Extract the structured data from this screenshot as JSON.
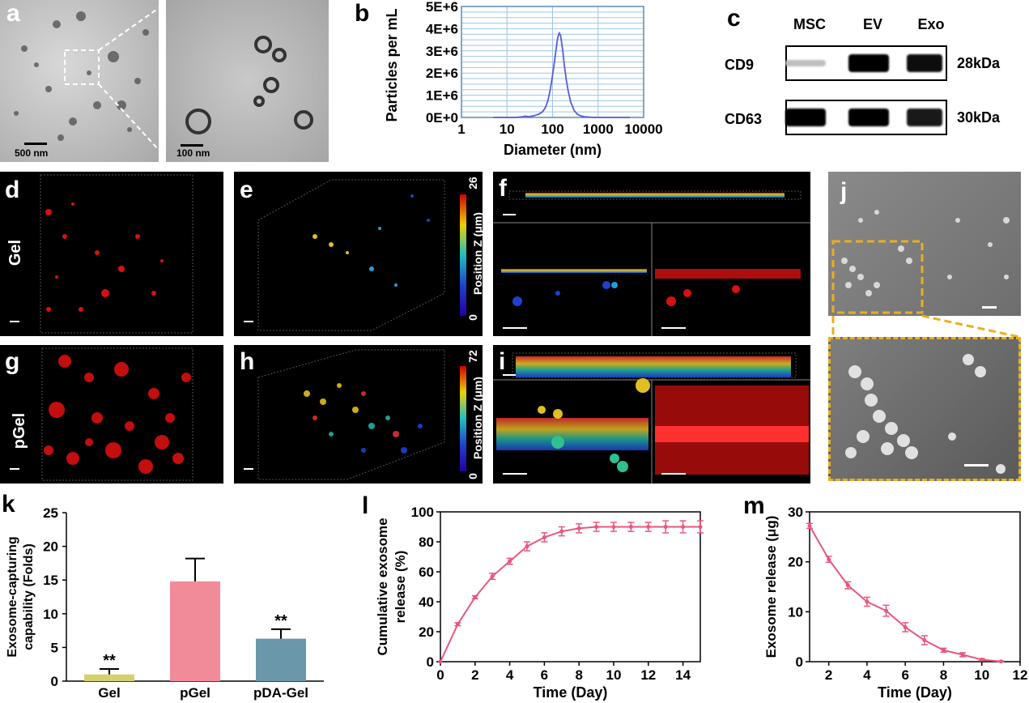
{
  "figure": {
    "panel_labels": {
      "a": "a",
      "b": "b",
      "c": "c",
      "d": "d",
      "e": "e",
      "f": "f",
      "g": "g",
      "h": "h",
      "i": "i",
      "j": "j",
      "k": "k",
      "l": "l",
      "m": "m"
    },
    "panel_a": {
      "scale_left": "500 nm",
      "scale_right": "100 nm"
    },
    "panel_c": {
      "columns": [
        "MSC",
        "EV",
        "Exo"
      ],
      "rows": [
        {
          "name": "CD9",
          "size": "28kDa",
          "intensity": [
            0.25,
            1.0,
            0.95
          ]
        },
        {
          "name": "CD63",
          "size": "30kDa",
          "intensity": [
            1.0,
            1.0,
            0.9
          ]
        }
      ]
    },
    "row_labels": {
      "gel": "Gel",
      "pgel": "pGel"
    },
    "colorbar": {
      "axis_label": "Position Z (μm)",
      "top_e": "26",
      "bottom_e": "0",
      "top_h": "72",
      "bottom_h": "0"
    }
  },
  "chart_data": [
    {
      "id": "b",
      "type": "line",
      "title": "",
      "xlabel": "Diameter (nm)",
      "ylabel": "Particles per mL",
      "xscale": "log",
      "xlim": [
        1,
        10000
      ],
      "ylim": [
        0,
        5000000
      ],
      "xticks": [
        "1",
        "10",
        "100",
        "1000",
        "10000"
      ],
      "yticks": [
        "0E+0",
        "1E+6",
        "2E+6",
        "3E+6",
        "4E+6",
        "5E+6"
      ],
      "grid": true,
      "color": "#5b5bd6",
      "x": [
        5,
        10,
        15,
        20,
        25,
        30,
        40,
        50,
        60,
        70,
        80,
        90,
        100,
        110,
        120,
        130,
        140,
        150,
        160,
        170,
        180,
        200,
        220,
        250,
        300,
        350,
        400,
        500,
        700,
        1000,
        2000,
        5000
      ],
      "y": [
        0,
        0,
        0,
        20000,
        60000,
        30000,
        80000,
        150000,
        250000,
        450000,
        800000,
        1300000,
        1900000,
        2500000,
        3100000,
        3600000,
        3800000,
        3700000,
        3300000,
        2900000,
        2400000,
        1700000,
        1200000,
        700000,
        300000,
        150000,
        80000,
        30000,
        10000,
        0,
        0,
        0
      ]
    },
    {
      "id": "k",
      "type": "bar",
      "title": "",
      "xlabel": "",
      "ylabel": "Exosome-capturing capability (Folds)",
      "ylim": [
        0,
        25
      ],
      "yticks": [
        "0",
        "5",
        "10",
        "15",
        "20",
        "25"
      ],
      "categories": [
        "Gel",
        "pGel",
        "pDA-Gel"
      ],
      "values": [
        1.0,
        14.8,
        6.3
      ],
      "errors": [
        0.8,
        3.4,
        1.4
      ],
      "colors": [
        "#d4d070",
        "#f28b99",
        "#6b97ab"
      ],
      "annotations": [
        "**",
        "",
        "**"
      ]
    },
    {
      "id": "l",
      "type": "line",
      "title": "",
      "xlabel": "Time (Day)",
      "ylabel": "Cumulative exosome release (%)",
      "xlim": [
        0,
        15
      ],
      "ylim": [
        0,
        100
      ],
      "xticks": [
        "0",
        "2",
        "4",
        "6",
        "8",
        "10",
        "12",
        "14"
      ],
      "yticks": [
        "0",
        "20",
        "40",
        "60",
        "80",
        "100"
      ],
      "color": "#e8577e",
      "x": [
        0,
        1,
        2,
        3,
        4,
        5,
        6,
        7,
        8,
        9,
        10,
        11,
        12,
        13,
        14,
        15
      ],
      "y": [
        0,
        25,
        43,
        57,
        67,
        77,
        83,
        87,
        89,
        90,
        90,
        90,
        90,
        90,
        90,
        90
      ],
      "errors": [
        0,
        1,
        1,
        2,
        2,
        3,
        3,
        3,
        3,
        3,
        3,
        3,
        3,
        4,
        4,
        4
      ]
    },
    {
      "id": "m",
      "type": "line",
      "title": "",
      "xlabel": "Time (Day)",
      "ylabel": "Exosome release (μg)",
      "xlim": [
        1,
        12
      ],
      "ylim": [
        0,
        30
      ],
      "xticks": [
        "2",
        "4",
        "6",
        "8",
        "10",
        "12"
      ],
      "yticks": [
        "0",
        "10",
        "20",
        "30"
      ],
      "color": "#e8577e",
      "x": [
        1,
        2,
        3,
        4,
        5,
        6,
        7,
        8,
        9,
        10,
        11
      ],
      "y": [
        27.2,
        20.5,
        15.3,
        12.0,
        10.2,
        6.9,
        4.3,
        2.3,
        1.4,
        0.4,
        0.05
      ],
      "errors": [
        0.5,
        0.6,
        0.7,
        0.9,
        1.1,
        0.9,
        0.9,
        0.4,
        0.4,
        0.2,
        0.1
      ]
    }
  ]
}
